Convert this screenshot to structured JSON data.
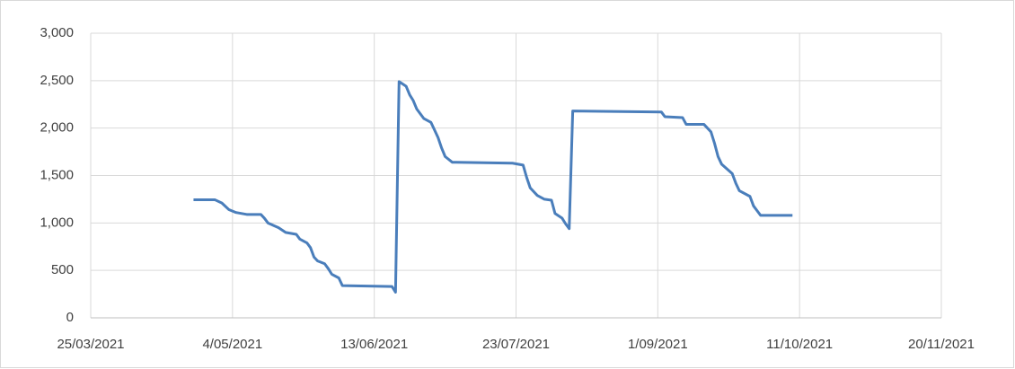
{
  "chart_data": {
    "type": "line",
    "x": [
      "23/04/2021",
      "29/04/2021",
      "1/05/2021",
      "3/05/2021",
      "5/05/2021",
      "8/05/2021",
      "12/05/2021",
      "13/05/2021",
      "14/05/2021",
      "17/05/2021",
      "19/05/2021",
      "22/05/2021",
      "23/05/2021",
      "25/05/2021",
      "26/05/2021",
      "27/05/2021",
      "28/05/2021",
      "30/05/2021",
      "31/05/2021",
      "1/06/2021",
      "3/06/2021",
      "4/06/2021",
      "18/06/2021",
      "19/06/2021",
      "20/06/2021",
      "22/06/2021",
      "23/06/2021",
      "24/06/2021",
      "25/06/2021",
      "27/06/2021",
      "29/06/2021",
      "30/06/2021",
      "1/07/2021",
      "2/07/2021",
      "3/07/2021",
      "5/07/2021",
      "22/07/2021",
      "25/07/2021",
      "26/07/2021",
      "27/07/2021",
      "29/07/2021",
      "31/07/2021",
      "2/08/2021",
      "3/08/2021",
      "5/08/2021",
      "6/08/2021",
      "7/08/2021",
      "8/08/2021",
      "2/09/2021",
      "3/09/2021",
      "8/09/2021",
      "9/09/2021",
      "14/09/2021",
      "16/09/2021",
      "17/09/2021",
      "18/09/2021",
      "19/09/2021",
      "22/09/2021",
      "23/09/2021",
      "24/09/2021",
      "27/09/2021",
      "28/09/2021",
      "29/09/2021",
      "30/09/2021",
      "9/10/2021"
    ],
    "series": [
      {
        "color": "#4a7ebb",
        "values": [
          1245,
          1245,
          1210,
          1140,
          1110,
          1090,
          1090,
          1050,
          1000,
          950,
          900,
          880,
          830,
          790,
          740,
          640,
          600,
          570,
          520,
          460,
          420,
          340,
          330,
          270,
          2490,
          2440,
          2350,
          2290,
          2200,
          2100,
          2060,
          1980,
          1900,
          1790,
          1700,
          1640,
          1630,
          1610,
          1480,
          1370,
          1290,
          1250,
          1240,
          1100,
          1050,
          990,
          940,
          2180,
          2170,
          2120,
          2110,
          2040,
          2040,
          1960,
          1840,
          1700,
          1620,
          1520,
          1420,
          1340,
          1280,
          1180,
          1130,
          1080,
          1080
        ]
      }
    ],
    "xlim": [
      "25/03/2021",
      "20/11/2021"
    ],
    "xticks": [
      "25/03/2021",
      "4/05/2021",
      "13/06/2021",
      "23/07/2021",
      "1/09/2021",
      "11/10/2021",
      "20/11/2021"
    ],
    "ylim": [
      0,
      3000
    ],
    "yticks": [
      0,
      500,
      {
        "value": 1000,
        "label": "1,000"
      },
      {
        "value": 1500,
        "label": "1,500"
      },
      {
        "value": 2000,
        "label": "2,000"
      },
      {
        "value": 2500,
        "label": "2,500"
      },
      {
        "value": 3000,
        "label": "3,000"
      }
    ],
    "grid": true
  }
}
